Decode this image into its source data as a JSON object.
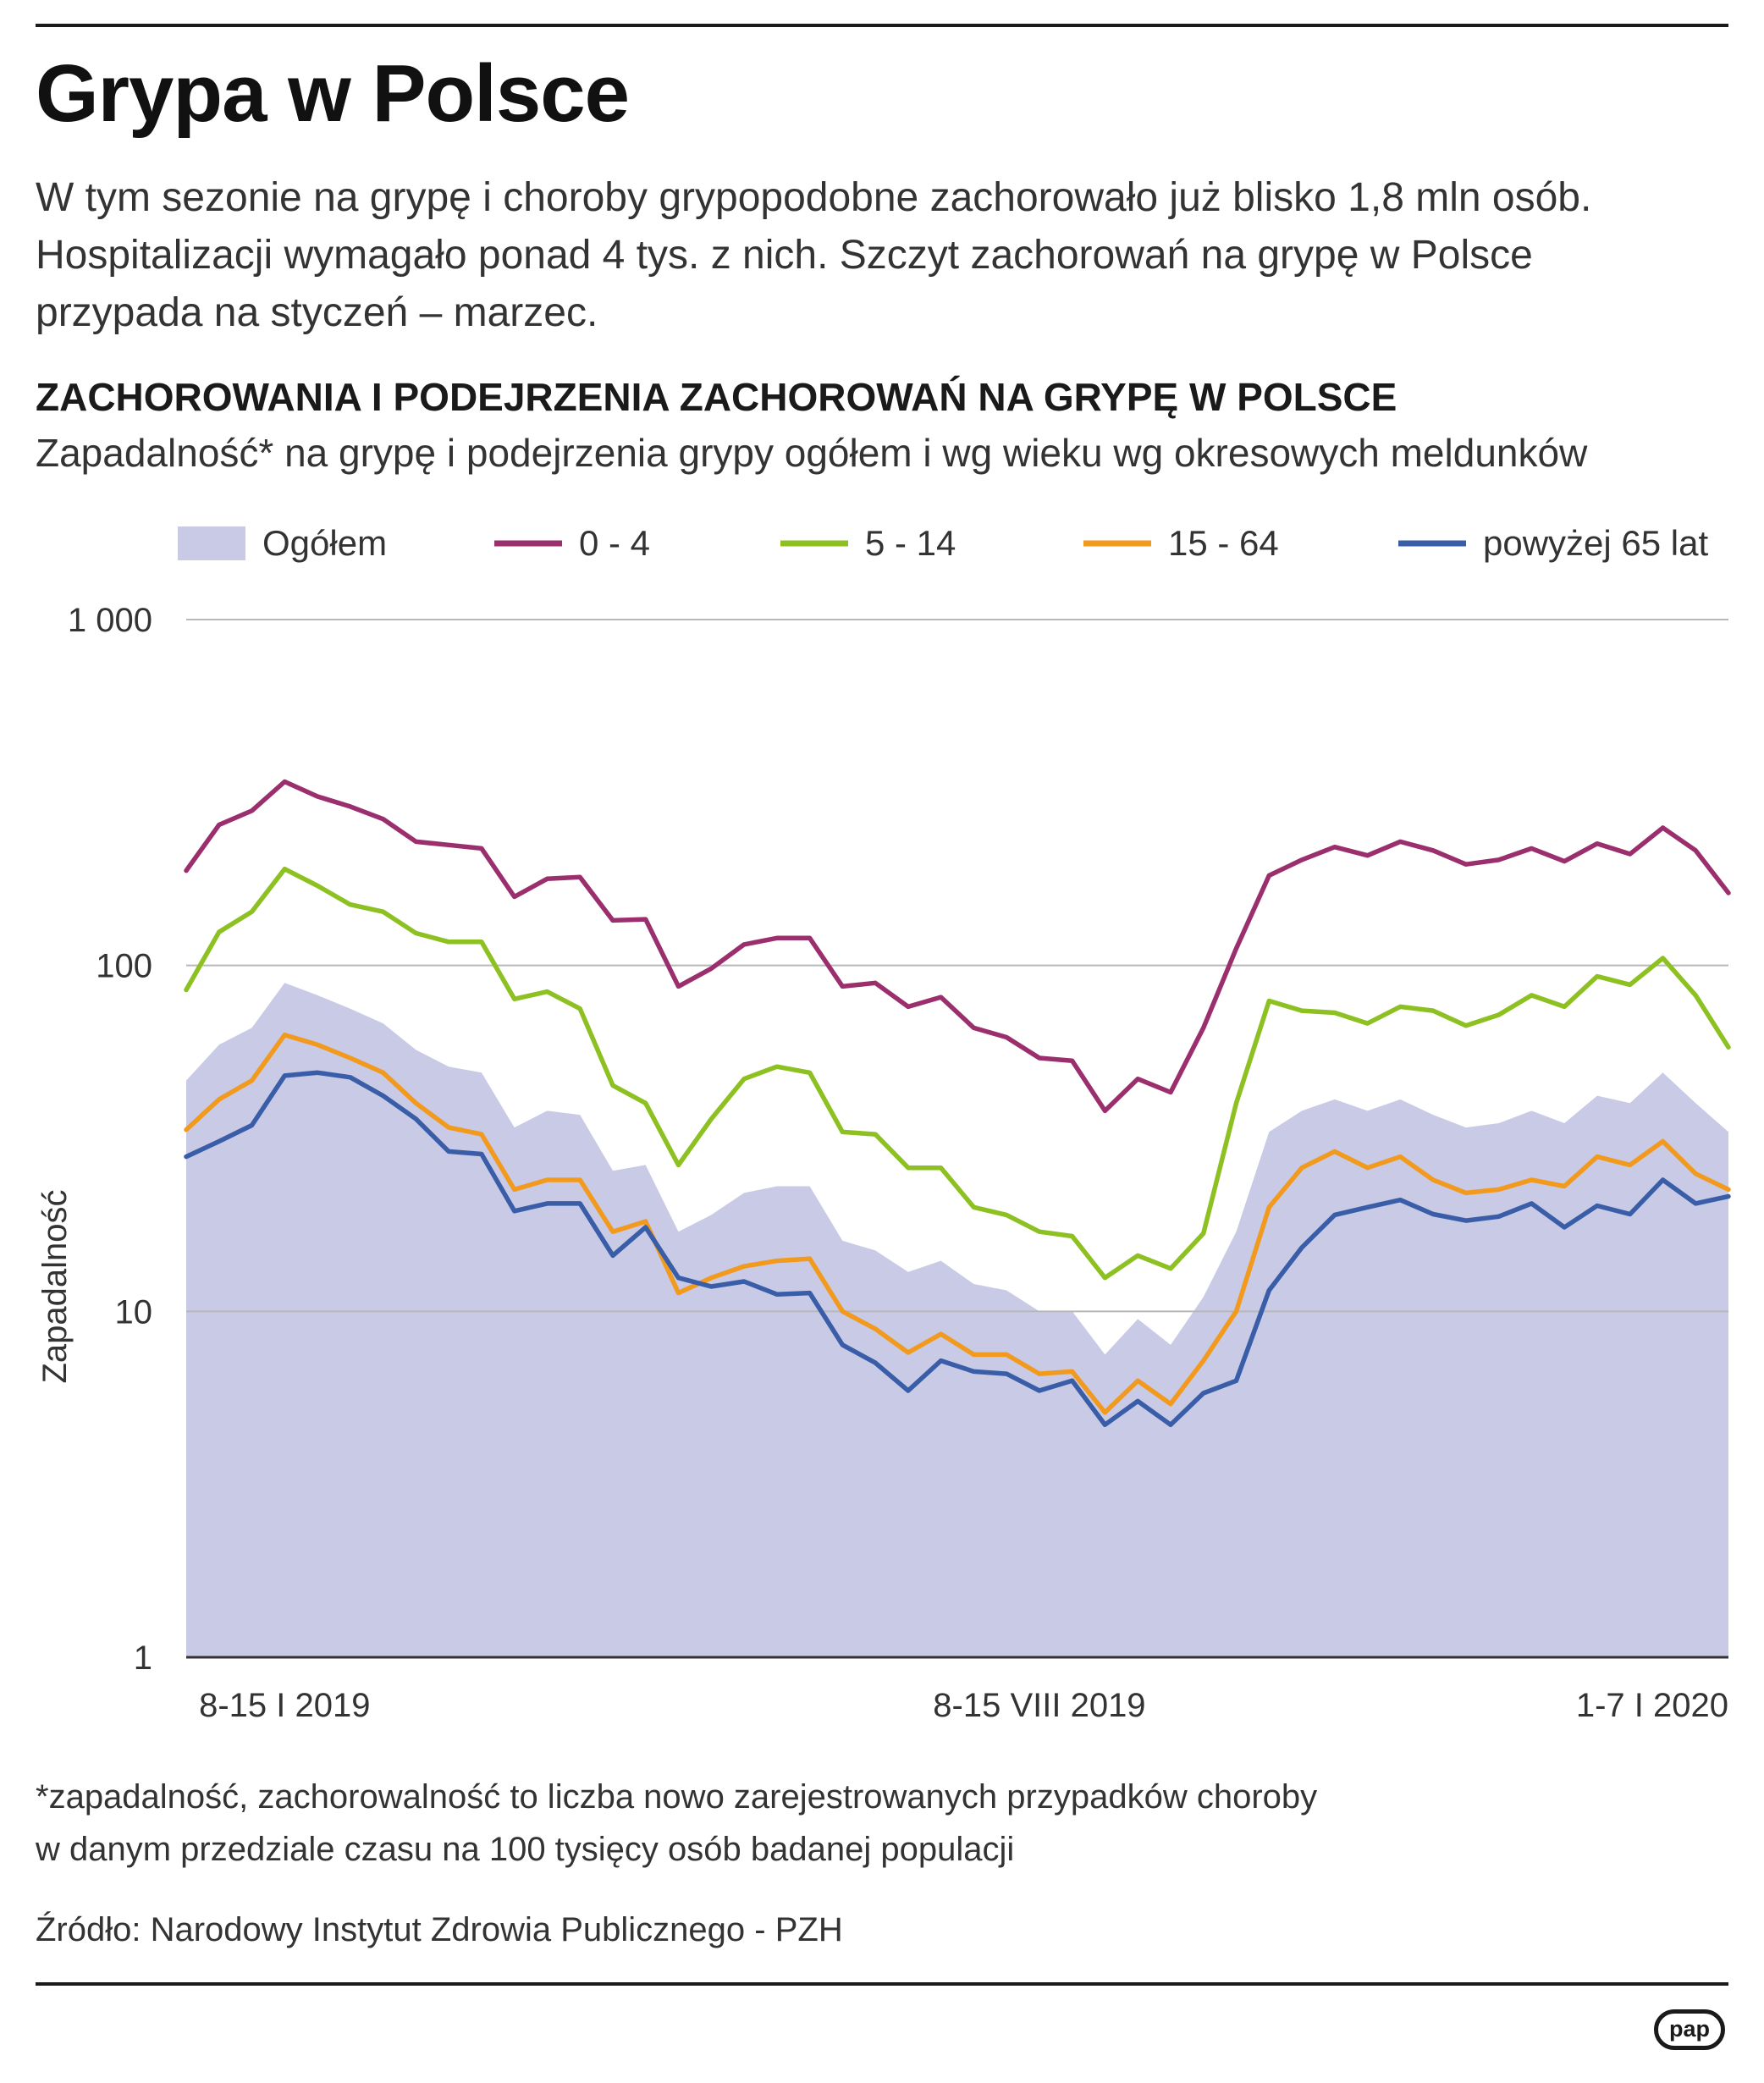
{
  "title": "Grypa w Polsce",
  "intro": "W tym sezonie na grypę i choroby grypopodobne zachorowało już blisko 1,8 mln osób. Hospitalizacji wymagało ponad 4 tys. z nich. Szczyt zachorowań na grypę w Polsce przypada na styczeń – marzec.",
  "footnote_line1": "*zapadalność, zachorowalność to liczba nowo zarejestrowanych przypadków choroby",
  "footnote_line2": "w danym przedziale czasu na 100 tysięcy osób badanej populacji",
  "source": "Źródło: Narodowy Instytut Zdrowia Publicznego - PZH",
  "logo": "pap",
  "chart_data": {
    "type": "line",
    "title": "ZACHOROWANIA I PODEJRZENIA ZACHOROWAŃ NA GRYPĘ W POLSCE",
    "subtitle": "Zapadalność* na grypę i podejrzenia grypy ogółem i wg wieku wg okresowych meldunków",
    "ylabel": "Zapadalność",
    "xlabel": "",
    "yscale": "log",
    "ylim": [
      1,
      1000
    ],
    "yticks": [
      {
        "value": 1000,
        "label": "1 000"
      },
      {
        "value": 100,
        "label": "100"
      },
      {
        "value": 10,
        "label": "10"
      },
      {
        "value": 1,
        "label": "1"
      }
    ],
    "xtick_labels": [
      {
        "index": 3,
        "label": "8-15 I 2019"
      },
      {
        "index": 26,
        "label": "8-15 VIII 2019"
      },
      {
        "index": 45,
        "label": "1-7 I 2020"
      }
    ],
    "legend_position": "top",
    "colors": {
      "area": "#c8cae6",
      "grid": "#b8b8b8",
      "axis": "#333333",
      "0-4": "#9b2f6e",
      "5-14": "#8dc021",
      "15-64": "#f29a1e",
      "65+": "#3a5da8"
    },
    "area_series": {
      "name": "Ogółem",
      "values": [
        46.5,
        59,
        66,
        89,
        82,
        75,
        68,
        57,
        51,
        49,
        34,
        38,
        37,
        25.5,
        26.5,
        17,
        19,
        22,
        23,
        23,
        16,
        15,
        13,
        14,
        12,
        11.5,
        10,
        10,
        7.5,
        9.5,
        8,
        11,
        17,
        33,
        38,
        41,
        38,
        41,
        37,
        34,
        35,
        38,
        35,
        42,
        40,
        49,
        40,
        33
      ]
    },
    "series": [
      {
        "name": "0 - 4",
        "key": "0-4",
        "values": [
          188,
          255,
          280,
          340,
          308,
          288,
          265,
          228,
          223,
          218,
          158,
          178,
          180,
          135,
          136,
          87,
          98,
          115,
          120,
          120,
          87,
          89,
          76,
          81,
          66,
          62,
          54,
          53,
          38,
          47,
          43,
          66,
          112,
          182,
          202,
          220,
          208,
          228,
          215,
          196,
          202,
          218,
          200,
          225,
          210,
          250,
          215,
          162
        ]
      },
      {
        "name": "5 - 14",
        "key": "5-14",
        "values": [
          85,
          125,
          143,
          190,
          170,
          150,
          143,
          124,
          117,
          117,
          80,
          84,
          75,
          45,
          40,
          26.5,
          36,
          47,
          51,
          49,
          33,
          32.5,
          26,
          26,
          20,
          19,
          17,
          16.5,
          12.5,
          14.5,
          13.3,
          16.8,
          40,
          79,
          74,
          73,
          68,
          76,
          74,
          67,
          72,
          82,
          76,
          93,
          88,
          105,
          82,
          58
        ]
      },
      {
        "name": "15 - 64",
        "key": "15-64",
        "values": [
          33.5,
          41,
          46.5,
          63,
          59,
          54,
          49,
          40,
          34,
          32.5,
          22.5,
          24,
          24,
          17,
          18.2,
          11.3,
          12.5,
          13.5,
          14,
          14.2,
          10,
          8.9,
          7.6,
          8.6,
          7.5,
          7.5,
          6.6,
          6.7,
          5.1,
          6.3,
          5.4,
          7.2,
          10,
          20,
          26,
          29,
          26,
          28,
          24,
          22,
          22.5,
          24,
          23,
          28,
          26.5,
          31,
          25,
          22.5
        ]
      },
      {
        "name": "powyżej 65 lat",
        "key": "65+",
        "values": [
          28,
          31,
          34.5,
          48,
          49,
          47.5,
          42,
          36,
          29,
          28.5,
          19.5,
          20.5,
          20.5,
          14.5,
          17.5,
          12.5,
          11.8,
          12.2,
          11.2,
          11.3,
          8,
          7.1,
          5.9,
          7.2,
          6.7,
          6.6,
          5.9,
          6.3,
          4.7,
          5.5,
          4.7,
          5.8,
          6.3,
          11.5,
          15.3,
          19,
          20,
          21,
          19.1,
          18.3,
          18.8,
          20.5,
          17.5,
          20.2,
          19.1,
          24,
          20.5,
          21.5
        ]
      }
    ]
  }
}
